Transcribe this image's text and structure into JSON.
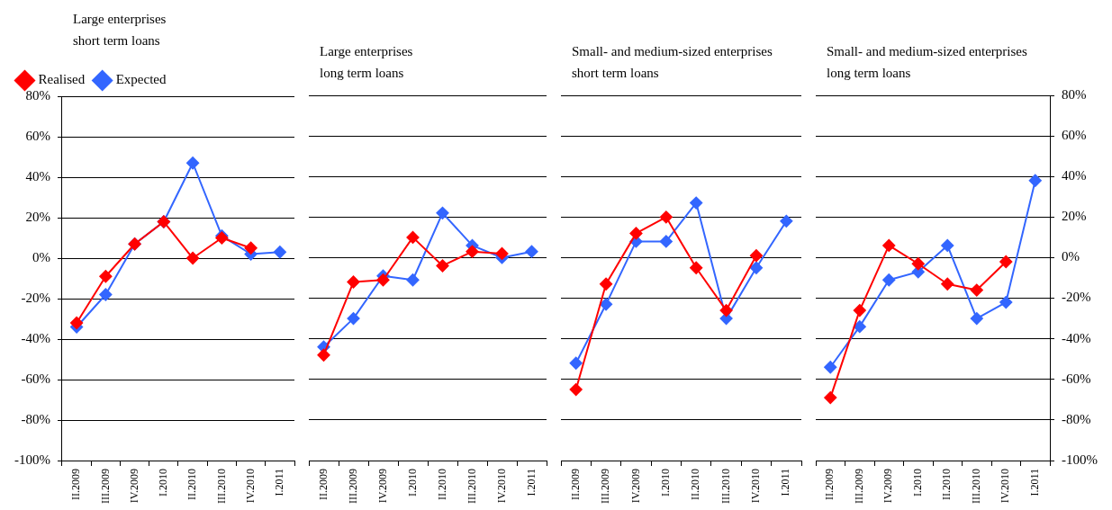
{
  "chart_data": [
    {
      "type": "line",
      "title": "Large enterprises short term loans",
      "categories": [
        "II.2009",
        "III.2009",
        "IV.2009",
        "I.2010",
        "II.2010",
        "III.2010",
        "IV.2010",
        "I.2011"
      ],
      "series": [
        {
          "name": "Realised",
          "color": "#ff0000",
          "values": [
            -32,
            -9,
            7,
            18,
            0,
            10,
            5,
            null
          ]
        },
        {
          "name": "Expected",
          "color": "#3366ff",
          "values": [
            -34,
            -18,
            7,
            18,
            47,
            11,
            2,
            3
          ]
        }
      ],
      "ylim": [
        -100,
        80
      ],
      "yticks": [
        {
          "value": -100,
          "label": "-100%"
        },
        {
          "value": -80,
          "label": "-80%"
        },
        {
          "value": -60,
          "label": "-60%"
        },
        {
          "value": -40,
          "label": "-40%"
        },
        {
          "value": -20,
          "label": "-20%"
        },
        {
          "value": 0,
          "label": "0%"
        },
        {
          "value": 20,
          "label": "20%"
        },
        {
          "value": 40,
          "label": "40%"
        },
        {
          "value": 60,
          "label": "60%"
        },
        {
          "value": 80,
          "label": "80%"
        }
      ],
      "grid": "y",
      "legend": "top left",
      "marker": "diamond",
      "line_style": "solid"
    },
    {
      "type": "line",
      "title": "Large enterprises long term loans",
      "categories": [
        "II.2009",
        "III.2009",
        "IV.2009",
        "I.2010",
        "II.2010",
        "III.2010",
        "IV.2010",
        "I.2011"
      ],
      "series": [
        {
          "color": "#ff0000",
          "values": [
            -48,
            -12,
            -11,
            10,
            -4,
            3,
            2,
            null
          ]
        },
        {
          "color": "#3366ff",
          "values": [
            -44,
            -30,
            -9,
            -11,
            22,
            6,
            0,
            3
          ]
        }
      ],
      "ylim": [
        -100,
        80
      ],
      "yticks": [
        -100,
        -80,
        -60,
        -40,
        -20,
        0,
        20,
        40,
        60,
        80
      ],
      "grid": "y",
      "tick_labels": "x",
      "marker": "diamond",
      "line_style": "solid"
    },
    {
      "type": "line",
      "title": "Small- and medium-sized enterprises short term loans",
      "categories": [
        "II.2009",
        "III.2009",
        "IV.2009",
        "I.2010",
        "II.2010",
        "III.2010",
        "IV.2010",
        "I.2011"
      ],
      "series": [
        {
          "color": "#ff0000",
          "values": [
            -65,
            -13,
            12,
            20,
            -5,
            -26,
            1,
            null
          ]
        },
        {
          "color": "#3366ff",
          "values": [
            -52,
            -23,
            8,
            8,
            27,
            -30,
            -5,
            18
          ]
        }
      ],
      "ylim": [
        -100,
        80
      ],
      "yticks": [
        -100,
        -80,
        -60,
        -40,
        -20,
        0,
        20,
        40,
        60,
        80
      ],
      "grid": "y",
      "tick_labels": "x",
      "marker": "diamond",
      "line_style": "solid"
    },
    {
      "type": "line",
      "title": "Small- and medium-sized enterprises long term loans",
      "categories": [
        "II.2009",
        "III.2009",
        "IV.2009",
        "I.2010",
        "II.2010",
        "III.2010",
        "IV.2010",
        "I.2011"
      ],
      "series": [
        {
          "color": "#ff0000",
          "axis": "y2",
          "values": [
            -69,
            -26,
            6,
            -3,
            -13,
            -16,
            -2,
            null
          ]
        },
        {
          "color": "#3366ff",
          "axis": "y2",
          "values": [
            -54,
            -34,
            -11,
            -7,
            6,
            -30,
            -22,
            38
          ]
        }
      ],
      "y2lim": [
        -100,
        80
      ],
      "y2ticks": [
        {
          "value": -100,
          "label": "-100%"
        },
        {
          "value": -80,
          "label": "-80%"
        },
        {
          "value": -60,
          "label": "-60%"
        },
        {
          "value": -40,
          "label": "-40%"
        },
        {
          "value": -20,
          "label": "-20%"
        },
        {
          "value": 0,
          "label": "0%"
        },
        {
          "value": 20,
          "label": "20%"
        },
        {
          "value": 40,
          "label": "40%"
        },
        {
          "value": 60,
          "label": "60%"
        },
        {
          "value": 80,
          "label": "80%"
        }
      ],
      "grid": "y",
      "marker": "diamond",
      "line_style": "solid"
    }
  ]
}
